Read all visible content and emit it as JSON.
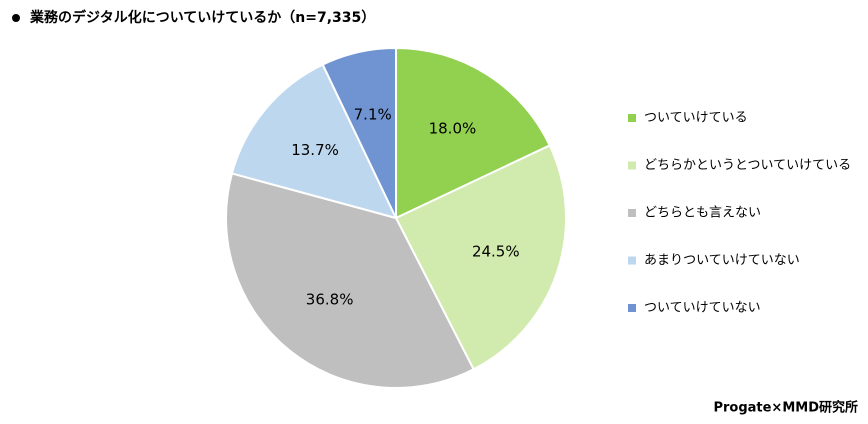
{
  "chart_data": {
    "type": "pie",
    "title": "業務のデジタル化についていけているか（n=7,335）",
    "categories": [
      "ついていけている",
      "どちらかというとついていけている",
      "どちらとも言えない",
      "あまりついていけていない",
      "ついていけていない"
    ],
    "values": [
      18.0,
      24.5,
      36.8,
      13.7,
      7.1
    ],
    "value_labels": [
      "18.0%",
      "24.5%",
      "36.8%",
      "13.7%",
      "7.1%"
    ],
    "colors": [
      "#92d050",
      "#d1eaad",
      "#bfbfbf",
      "#bdd7ee",
      "#7094d2"
    ],
    "legend": "right",
    "source": "Progate×MMD研究所"
  }
}
